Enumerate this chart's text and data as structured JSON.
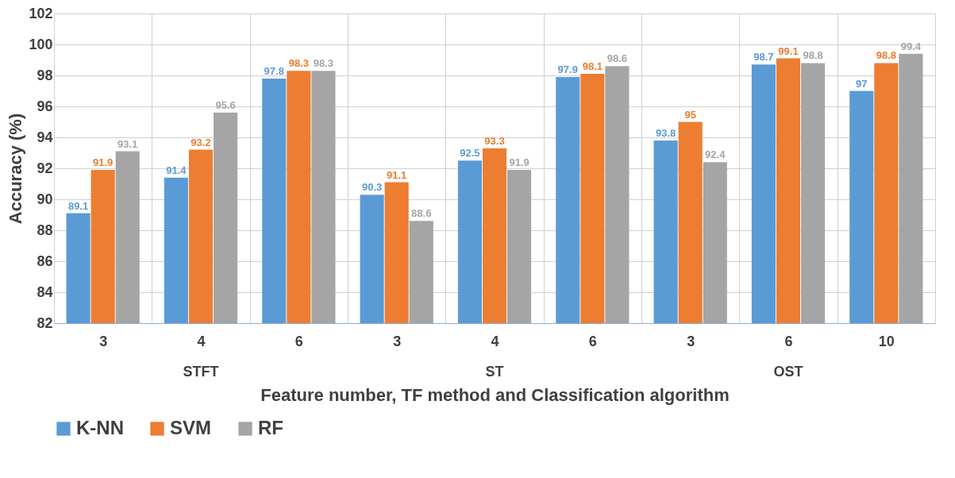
{
  "chart_data": {
    "type": "bar",
    "xlabel": "Feature number, TF method and Classification algorithm",
    "ylabel": "Accuracy (%)",
    "categories": [
      "3",
      "4",
      "6",
      "3",
      "4",
      "6",
      "3",
      "6",
      "10"
    ],
    "series": [
      {
        "name": "K-NN",
        "color": "#5b9bd5",
        "values": [
          89.1,
          91.4,
          97.8,
          90.3,
          92.5,
          97.9,
          93.8,
          98.7,
          97
        ]
      },
      {
        "name": "SVM",
        "color": "#ed7d31",
        "values": [
          91.9,
          93.2,
          98.3,
          91.1,
          93.3,
          98.1,
          95,
          99.1,
          98.8
        ]
      },
      {
        "name": "RF",
        "color": "#a5a5a5",
        "values": [
          93.1,
          95.6,
          98.3,
          88.6,
          91.9,
          98.6,
          92.4,
          98.8,
          99.4
        ]
      }
    ],
    "annotations": [
      "STFT",
      "ST",
      "OST"
    ],
    "ylim": [
      82,
      102
    ],
    "yticks": [
      82,
      84,
      86,
      88,
      90,
      92,
      94,
      96,
      98,
      100,
      102
    ],
    "grid": true,
    "legend": "bottom",
    "data_labels": true
  }
}
